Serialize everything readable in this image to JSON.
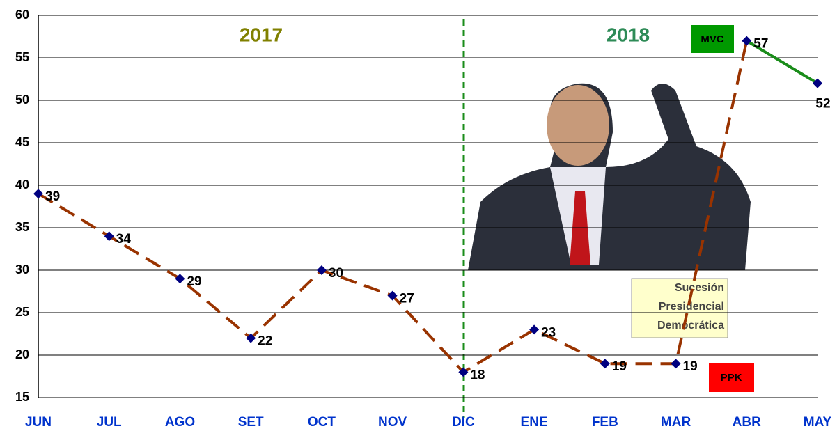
{
  "chart_data": {
    "type": "line",
    "categories": [
      "JUN",
      "JUL",
      "AGO",
      "SET",
      "OCT",
      "NOV",
      "DIC",
      "ENE",
      "FEB",
      "MAR",
      "ABR",
      "MAY"
    ],
    "series": [
      {
        "name": "PPK",
        "color": "#993300",
        "values": [
          39,
          34,
          29,
          22,
          30,
          27,
          18,
          23,
          19,
          19,
          57,
          null
        ]
      },
      {
        "name": "MVC",
        "color": "#1a8c1a",
        "values": [
          null,
          null,
          null,
          null,
          null,
          null,
          null,
          null,
          null,
          null,
          57,
          52
        ]
      }
    ],
    "marker_color": "#000080",
    "ylim": [
      15,
      60
    ],
    "yticks": [
      15,
      20,
      25,
      30,
      35,
      40,
      45,
      50,
      55,
      60
    ],
    "grid": true,
    "annotations": {
      "year_1": "2017",
      "year_2": "2018",
      "event": [
        "Sucesión",
        "Presidencial",
        "Democrática"
      ]
    }
  }
}
